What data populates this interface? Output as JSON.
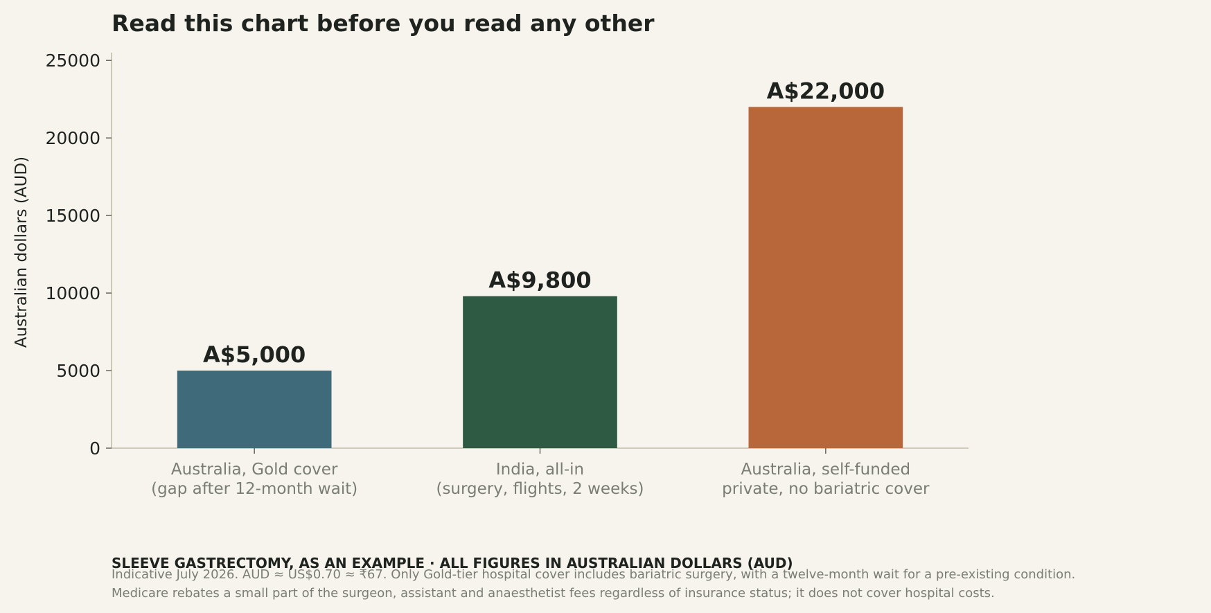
{
  "chart_data": {
    "type": "bar",
    "title": "Read this chart before you read any other",
    "ylabel": "Australian dollars (AUD)",
    "xlabel": "",
    "ylim": [
      0,
      25500
    ],
    "yticks": [
      0,
      5000,
      10000,
      15000,
      20000,
      25000
    ],
    "grid": false,
    "categories": [
      [
        "Australia, Gold cover",
        "(gap after 12-month wait)"
      ],
      [
        "India, all-in",
        "(surgery, flights, 2 weeks)"
      ],
      [
        "Australia, self-funded",
        "private, no bariatric cover"
      ]
    ],
    "values": [
      5000,
      9800,
      22000
    ],
    "value_labels": [
      "A$5,000",
      "A$9,800",
      "A$22,000"
    ],
    "colors": [
      "#3e6a7a",
      "#2e5a43",
      "#b8673a"
    ]
  },
  "footer": {
    "heading": "SLEEVE GASTRECTOMY, AS AN EXAMPLE · ALL FIGURES IN AUSTRALIAN DOLLARS (AUD)",
    "notes": [
      "Indicative July 2026. AUD ≈ US$0.70 ≈ ₹67. Only Gold-tier hospital cover includes bariatric surgery, with a twelve-month wait for a pre-existing condition.",
      "Medicare rebates a small part of the surgeon, assistant and anaesthetist fees regardless of insurance status; it does not cover hospital costs."
    ]
  },
  "colors": {
    "background": "#f7f4ed",
    "axis": "#c2bca8",
    "text": "#1f231f",
    "muted": "#7a7d74"
  }
}
